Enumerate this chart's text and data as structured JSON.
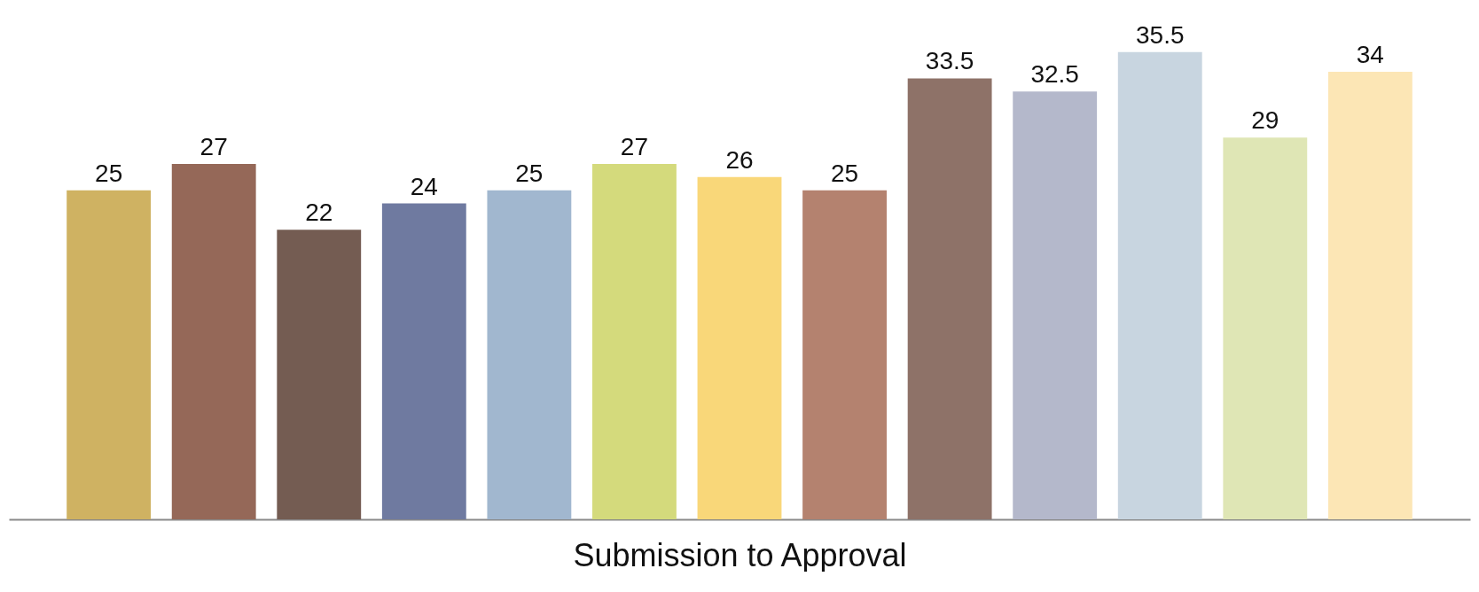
{
  "chart_data": {
    "type": "bar",
    "xlabel": "Submission to Approval",
    "categories": [
      null,
      null,
      null,
      null,
      null,
      null,
      null,
      null,
      null,
      null,
      null,
      null,
      null
    ],
    "values": [
      25,
      27,
      22,
      24,
      25,
      27,
      26,
      25,
      33.5,
      32.5,
      35.5,
      29,
      34
    ],
    "colors": [
      "#cfb262",
      "#956858",
      "#745c52",
      "#6f7aa0",
      "#a1b7cf",
      "#d4da7c",
      "#f9d779",
      "#b4826f",
      "#8e7268",
      "#b4b8cb",
      "#c8d5e0",
      "#dfe6b5",
      "#fce6b5"
    ],
    "data_labels": true
  }
}
